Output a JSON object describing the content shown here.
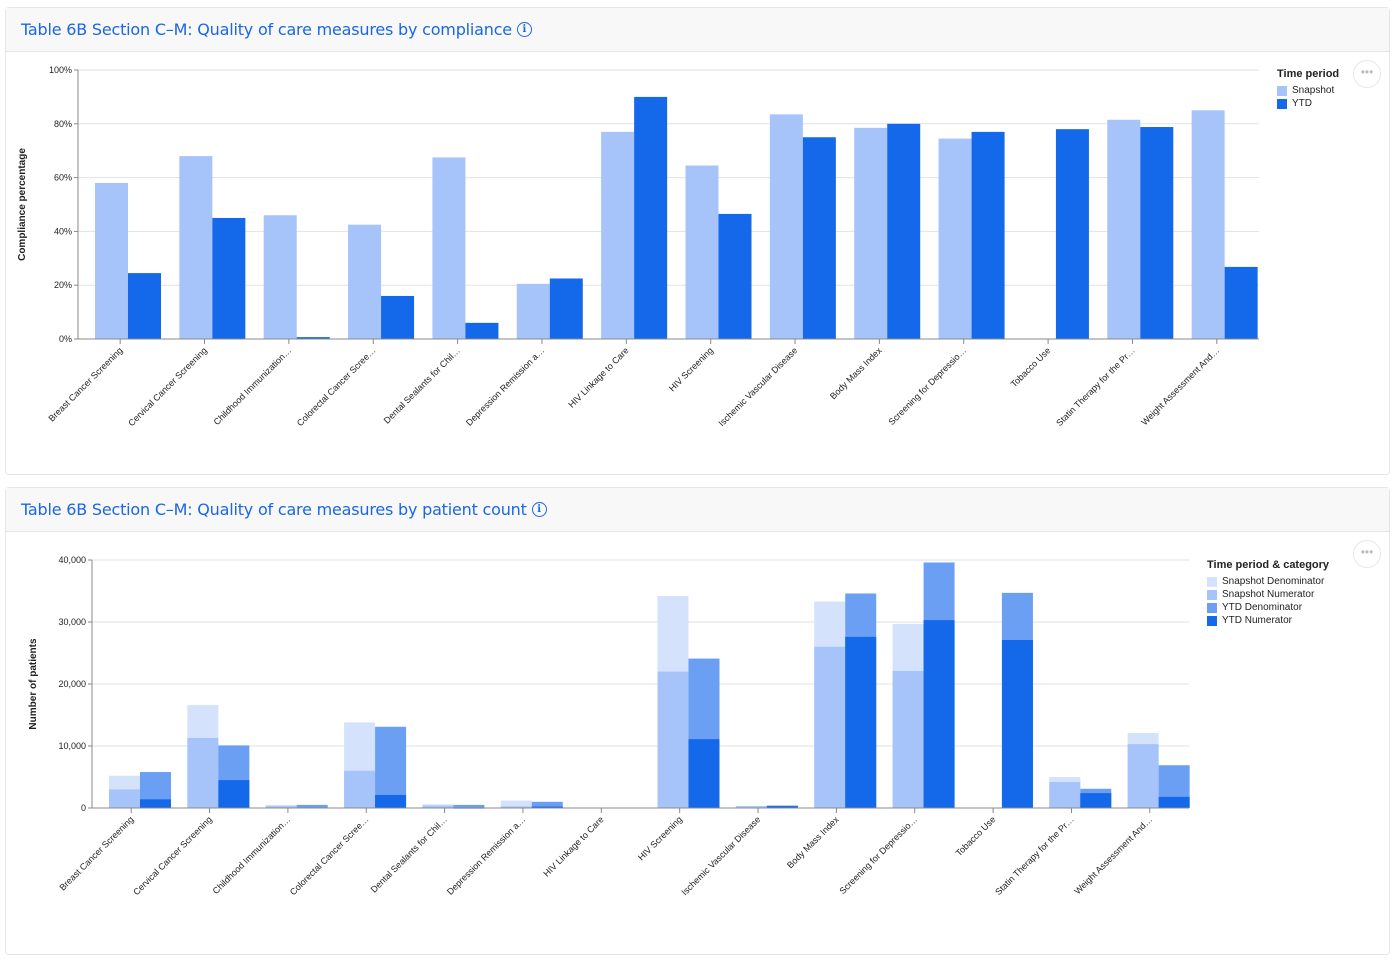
{
  "colors": {
    "snapshot": "#a6c4fa",
    "ytd": "#1468ea",
    "snapshot_denominator": "#d4e2fc",
    "snapshot_numerator": "#a6c4fa",
    "ytd_denominator": "#6a9ff3",
    "ytd_numerator": "#1468ea"
  },
  "icons": {
    "info": "info-circle-icon",
    "more": "more-horizontal-icon"
  },
  "info_glyph": "i",
  "more_glyph": "•••",
  "chart_data": [
    {
      "type": "bar",
      "title": "Table 6B Section C–M: Quality of care measures by compliance",
      "ylabel": "Compliance percentage",
      "xlabel": "",
      "ylim": [
        0,
        100
      ],
      "yticks": [
        "0%",
        "20%",
        "40%",
        "60%",
        "80%",
        "100%"
      ],
      "grid": true,
      "legend_title": "Time period",
      "legend_position": "top-right",
      "categories": [
        "Breast Cancer Screening",
        "Cervical Cancer Screening",
        "Childhood Immunization…",
        "Colorectal Cancer Scree…",
        "Dental Sealants for Chil…",
        "Depression Remission a…",
        "HIV Linkage to Care",
        "HIV Screening",
        "Ischemic Vascular Disease",
        "Body Mass Index",
        "Screening for Depressio…",
        "Tobacco Use",
        "Statin Therapy for the Pr…",
        "Weight Assessment And…"
      ],
      "series": [
        {
          "name": "Snapshot",
          "values": [
            58,
            68,
            46,
            42.5,
            67.5,
            20.5,
            77,
            64.5,
            83.5,
            78.5,
            74.5,
            null,
            81.5,
            85
          ]
        },
        {
          "name": "YTD",
          "values": [
            24.5,
            45,
            0.7,
            16,
            6,
            22.5,
            90,
            46.5,
            75,
            80,
            77,
            78,
            78.8,
            26.8
          ]
        }
      ]
    },
    {
      "type": "bar",
      "title": "Table 6B Section C–M: Quality of care measures by patient count",
      "ylabel": "Number of patients",
      "xlabel": "",
      "ylim": [
        0,
        40000
      ],
      "yticks": [
        "0",
        "10,000",
        "20,000",
        "30,000",
        "40,000"
      ],
      "grid": true,
      "legend_title": "Time period & category",
      "legend_position": "top-right",
      "categories": [
        "Breast Cancer Screening",
        "Cervical Cancer Screening",
        "Childhood Immunization…",
        "Colorectal Cancer Scree…",
        "Dental Sealants for Chil…",
        "Depression Remission a…",
        "HIV Linkage to Care",
        "HIV Screening",
        "Ischemic Vascular Disease",
        "Body Mass Index",
        "Screening for Depressio…",
        "Tobacco Use",
        "Statin Therapy for the Pr…",
        "Weight Assessment And…"
      ],
      "series": [
        {
          "name": "Snapshot Denominator",
          "values": [
            5200,
            16600,
            500,
            13800,
            600,
            1200,
            0,
            34200,
            350,
            33300,
            29700,
            0,
            5000,
            12100
          ]
        },
        {
          "name": "Snapshot Numerator",
          "values": [
            3000,
            11300,
            300,
            6000,
            400,
            250,
            0,
            22000,
            300,
            26000,
            22100,
            0,
            4200,
            10300
          ]
        },
        {
          "name": "YTD Denominator",
          "values": [
            5800,
            10100,
            500,
            13100,
            500,
            1000,
            0,
            24100,
            400,
            34600,
            39600,
            34700,
            3100,
            6900
          ]
        },
        {
          "name": "YTD Numerator",
          "values": [
            1400,
            4500,
            50,
            2100,
            30,
            230,
            0,
            11100,
            300,
            27600,
            30300,
            27100,
            2400,
            1800
          ]
        }
      ]
    }
  ]
}
